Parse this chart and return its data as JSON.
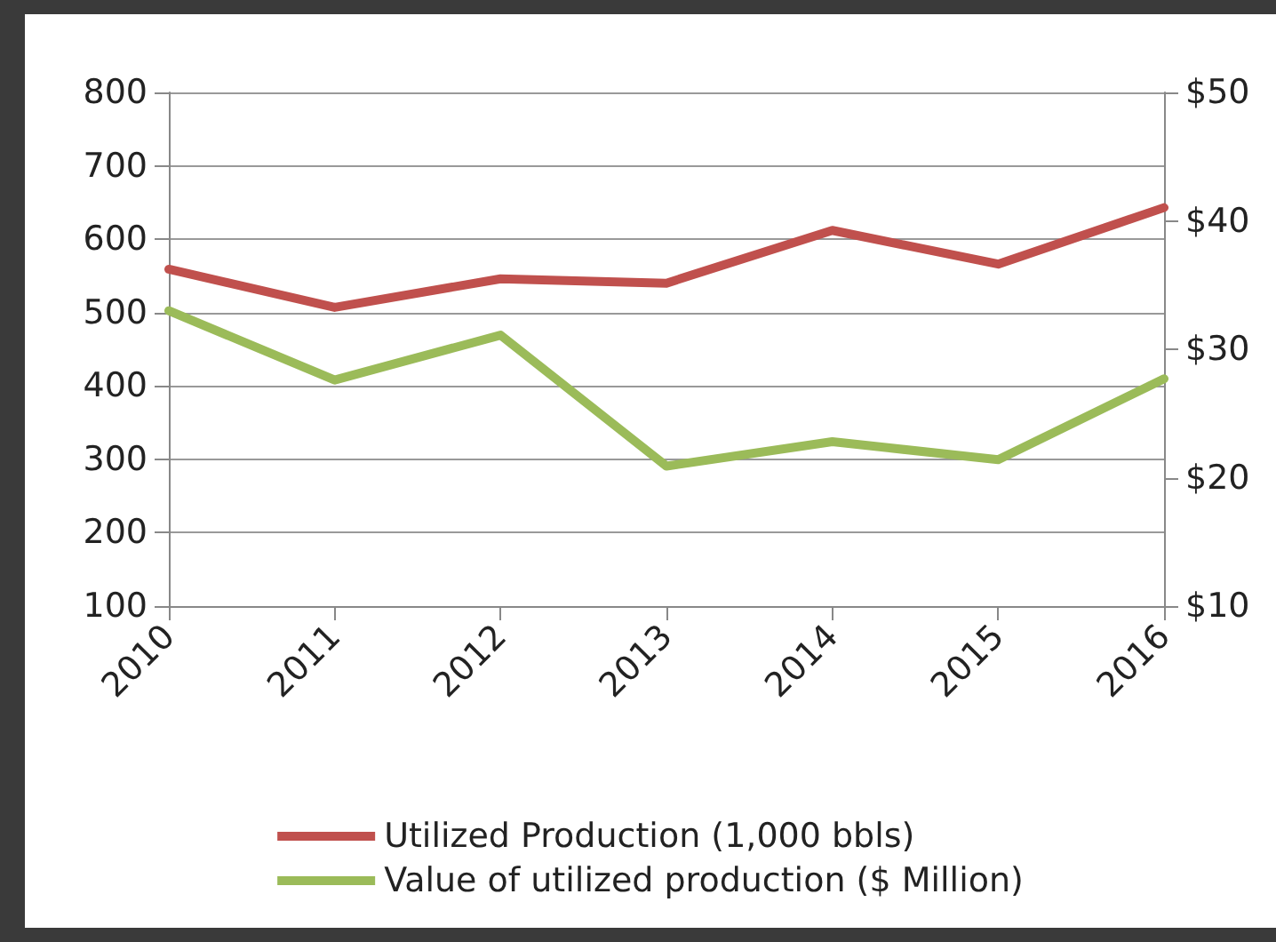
{
  "chart_data": {
    "type": "line",
    "categories": [
      "2010",
      "2011",
      "2012",
      "2013",
      "2014",
      "2015",
      "2016"
    ],
    "series": [
      {
        "name": "Utilized Production (1,000 bbls)",
        "color": "#c0504d",
        "values": [
          559,
          507,
          546,
          540,
          612,
          566,
          643
        ]
      },
      {
        "name": "Value of utilized production ($ Million)",
        "color": "#9bbb59",
        "axis": "y2",
        "values": [
          33.0,
          27.6,
          31.1,
          20.9,
          22.8,
          21.4,
          27.7
        ]
      }
    ],
    "ylim": [
      100,
      800
    ],
    "yticks": [
      100,
      200,
      300,
      400,
      500,
      600,
      700,
      800
    ],
    "y2lim": [
      10,
      50
    ],
    "y2ticks": [
      {
        "value": 10,
        "label": "$10"
      },
      {
        "value": 20,
        "label": "$20"
      },
      {
        "value": 30,
        "label": "$30"
      },
      {
        "value": 40,
        "label": "$40"
      },
      {
        "value": 50,
        "label": "$50"
      }
    ],
    "grid": "y",
    "legend": "bottom",
    "marker": "none",
    "line_style": "solid"
  }
}
